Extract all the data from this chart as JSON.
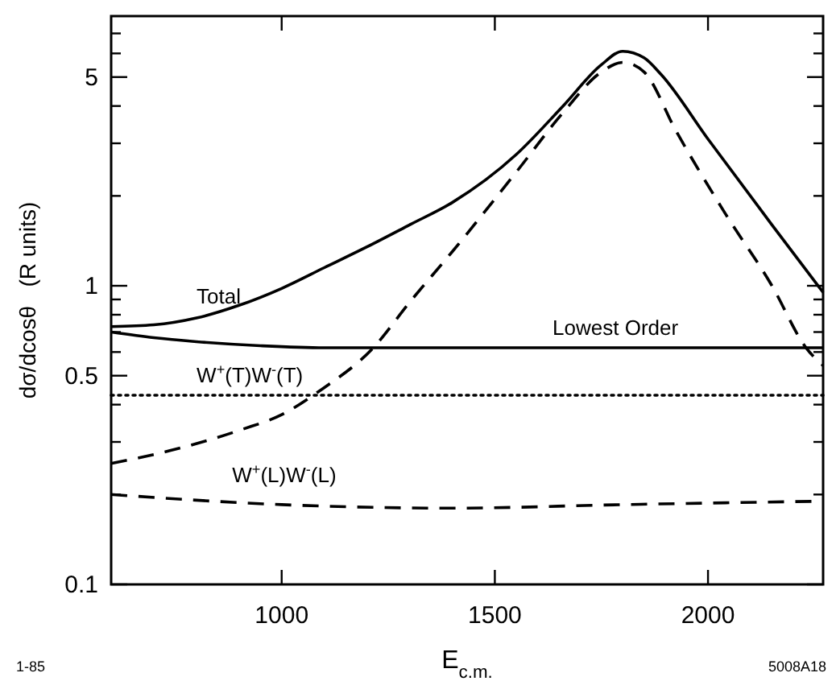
{
  "chart_data": {
    "type": "line",
    "xlabel": "E$_{c.m.}$",
    "ylabel": "dσ/dcosθ   (R units)",
    "log": "y",
    "grid": false,
    "xlim": [
      600,
      2270
    ],
    "xticks": [
      1000,
      1500,
      2000
    ],
    "ylim": [
      0.1,
      8
    ],
    "yticks": [
      0.1,
      {
        "value": 0.2,
        "label": null
      },
      {
        "value": 0.3,
        "label": null
      },
      {
        "value": 0.4,
        "label": null
      },
      0.5,
      {
        "value": 0.6,
        "label": null
      },
      {
        "value": 0.7,
        "label": null
      },
      {
        "value": 0.8,
        "label": null
      },
      {
        "value": 0.9,
        "label": null
      },
      1,
      {
        "value": 2,
        "label": null
      },
      {
        "value": 3,
        "label": null
      },
      {
        "value": 4,
        "label": null
      },
      5,
      {
        "value": 6,
        "label": null
      },
      {
        "value": 7,
        "label": null
      }
    ],
    "series": [
      {
        "name": "Total",
        "color": "#000000",
        "line_style": "solid",
        "x": [
          600,
          700,
          800,
          900,
          1000,
          1100,
          1200,
          1300,
          1400,
          1550,
          1660,
          1750,
          1800,
          1850,
          1890,
          2000,
          2150,
          2270
        ],
        "values": [
          0.73,
          0.74,
          0.78,
          0.86,
          0.98,
          1.15,
          1.35,
          1.6,
          1.9,
          2.75,
          4,
          5.5,
          6.1,
          5.8,
          5.1,
          3.1,
          1.6,
          0.95
        ]
      },
      {
        "color": "#000000",
        "line_style": "dashed",
        "x": [
          600,
          736,
          906,
          1000,
          1094,
          1215,
          1300,
          1400,
          1550,
          1660,
          1750,
          1800,
          1850,
          1925,
          2040,
          2150,
          2230,
          2270
        ],
        "values": [
          0.254,
          0.28,
          0.33,
          0.37,
          0.45,
          0.62,
          0.88,
          1.3,
          2.4,
          3.8,
          5.2,
          5.6,
          5.2,
          3.3,
          1.75,
          1.0,
          0.62,
          0.54
        ]
      },
      {
        "name": "Lowest Order",
        "color": "#000000",
        "line_style": "solid",
        "x": [
          600,
          700,
          800,
          950,
          1100,
          1500,
          2000,
          2270
        ],
        "values": [
          0.7,
          0.67,
          0.65,
          0.63,
          0.62,
          0.62,
          0.62,
          0.62
        ]
      },
      {
        "name": "W$^{+}$(T)W$^{-}$(T)",
        "color": "#000000",
        "line_style": "dotted",
        "x": [
          600,
          2270
        ],
        "values": [
          0.43,
          0.43
        ]
      },
      {
        "name": "W$^{+}$(L)W$^{-}$(L)",
        "color": "#000000",
        "line_style": "dashed",
        "x": [
          600,
          1000,
          1400,
          1800,
          2270
        ],
        "values": [
          0.2,
          0.185,
          0.18,
          0.185,
          0.19
        ]
      }
    ],
    "annotations": [
      "1-85",
      "5008A18"
    ]
  }
}
